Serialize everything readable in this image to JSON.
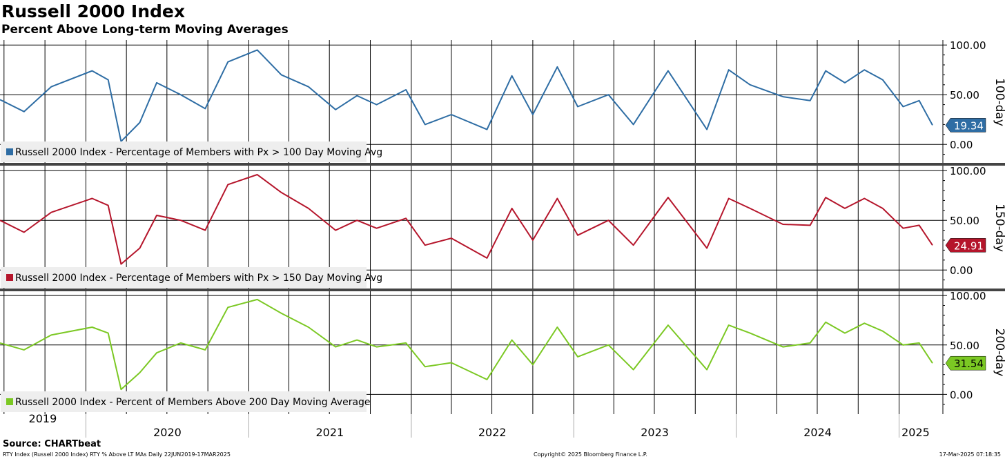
{
  "title": "Russell 2000 Index",
  "subtitle": "Percent Above Long-term Moving Averages",
  "footer": {
    "source": "Source: CHARTbeat",
    "left": "RTY Index (Russell 2000 Index) RTY % Above LT MAs  Daily 22JUN2019-17MAR2025",
    "center": "Copyright© 2025 Bloomberg Finance L.P.",
    "right": "17-Mar-2025 07:18:35"
  },
  "chart_data": {
    "type": "line",
    "x_axis": {
      "years": [
        "2019",
        "2020",
        "2021",
        "2022",
        "2023",
        "2024",
        "2025"
      ],
      "range": [
        "2019-06-22",
        "2025-03-17"
      ]
    },
    "y_ticks": [
      "100.00",
      "50.00",
      "0.00"
    ],
    "ylim": [
      -20,
      105
    ],
    "panels": [
      {
        "side_label": "100-day",
        "legend": "Russell 2000 Index - Percentage of Members with Px > 100 Day Moving Avg",
        "color": "#2E6DA4",
        "last_value_label": "19.34",
        "x": [
          "2019-06-22",
          "2019-08-15",
          "2019-10-15",
          "2020-01-15",
          "2020-02-20",
          "2020-03-20",
          "2020-05-01",
          "2020-06-08",
          "2020-08-01",
          "2020-09-25",
          "2020-11-15",
          "2021-01-20",
          "2021-03-15",
          "2021-05-15",
          "2021-07-15",
          "2021-09-01",
          "2021-10-15",
          "2021-12-20",
          "2022-02-01",
          "2022-04-01",
          "2022-06-20",
          "2022-08-15",
          "2022-10-01",
          "2022-11-25",
          "2023-01-10",
          "2023-03-20",
          "2023-05-15",
          "2023-08-01",
          "2023-10-27",
          "2023-12-15",
          "2024-02-01",
          "2024-04-15",
          "2024-06-15",
          "2024-07-20",
          "2024-09-01",
          "2024-10-15",
          "2024-11-25",
          "2025-01-10",
          "2025-02-15",
          "2025-03-17"
        ],
        "values": [
          45,
          33,
          58,
          74,
          65,
          3,
          22,
          62,
          50,
          36,
          83,
          95,
          70,
          58,
          35,
          49,
          40,
          55,
          20,
          30,
          15,
          69,
          30,
          78,
          38,
          50,
          20,
          74,
          15,
          75,
          60,
          48,
          44,
          74,
          62,
          75,
          65,
          38,
          44,
          19.34
        ]
      },
      {
        "side_label": "150-day",
        "legend": "Russell 2000 Index - Percentage of Members with Px > 150 Day Moving Avg",
        "color": "#B5152B",
        "last_value_label": "24.91",
        "x": [
          "2019-06-22",
          "2019-08-15",
          "2019-10-15",
          "2020-01-15",
          "2020-02-20",
          "2020-03-20",
          "2020-05-01",
          "2020-06-08",
          "2020-08-01",
          "2020-09-25",
          "2020-11-15",
          "2021-01-20",
          "2021-03-15",
          "2021-05-15",
          "2021-07-15",
          "2021-09-01",
          "2021-10-15",
          "2021-12-20",
          "2022-02-01",
          "2022-04-01",
          "2022-06-20",
          "2022-08-15",
          "2022-10-01",
          "2022-11-25",
          "2023-01-10",
          "2023-03-20",
          "2023-05-15",
          "2023-08-01",
          "2023-10-27",
          "2023-12-15",
          "2024-02-01",
          "2024-04-15",
          "2024-06-15",
          "2024-07-20",
          "2024-09-01",
          "2024-10-15",
          "2024-11-25",
          "2025-01-10",
          "2025-02-15",
          "2025-03-17"
        ],
        "values": [
          50,
          38,
          58,
          72,
          65,
          6,
          22,
          55,
          50,
          40,
          86,
          96,
          78,
          62,
          40,
          50,
          42,
          52,
          25,
          32,
          12,
          62,
          30,
          72,
          35,
          50,
          25,
          73,
          22,
          72,
          62,
          46,
          45,
          73,
          62,
          72,
          62,
          42,
          45,
          24.91
        ]
      },
      {
        "side_label": "200-day",
        "legend": "Russell 2000 Index - Percent of Members Above 200 Day Moving Average",
        "color": "#7BC823",
        "last_value_label": "31.54",
        "x": [
          "2019-06-22",
          "2019-08-15",
          "2019-10-15",
          "2020-01-15",
          "2020-02-20",
          "2020-03-20",
          "2020-05-01",
          "2020-06-08",
          "2020-08-01",
          "2020-09-25",
          "2020-11-15",
          "2021-01-20",
          "2021-03-15",
          "2021-05-15",
          "2021-07-15",
          "2021-09-01",
          "2021-10-15",
          "2021-12-20",
          "2022-02-01",
          "2022-04-01",
          "2022-06-20",
          "2022-08-15",
          "2022-10-01",
          "2022-11-25",
          "2023-01-10",
          "2023-03-20",
          "2023-05-15",
          "2023-08-01",
          "2023-10-27",
          "2023-12-15",
          "2024-02-01",
          "2024-04-15",
          "2024-06-15",
          "2024-07-20",
          "2024-09-01",
          "2024-10-15",
          "2024-11-25",
          "2025-01-10",
          "2025-02-15",
          "2025-03-17"
        ],
        "values": [
          52,
          45,
          60,
          68,
          62,
          5,
          22,
          42,
          52,
          45,
          88,
          96,
          82,
          68,
          48,
          55,
          48,
          52,
          28,
          32,
          15,
          55,
          30,
          68,
          38,
          50,
          25,
          70,
          25,
          70,
          62,
          48,
          52,
          73,
          62,
          72,
          64,
          50,
          52,
          31.54
        ]
      }
    ]
  }
}
